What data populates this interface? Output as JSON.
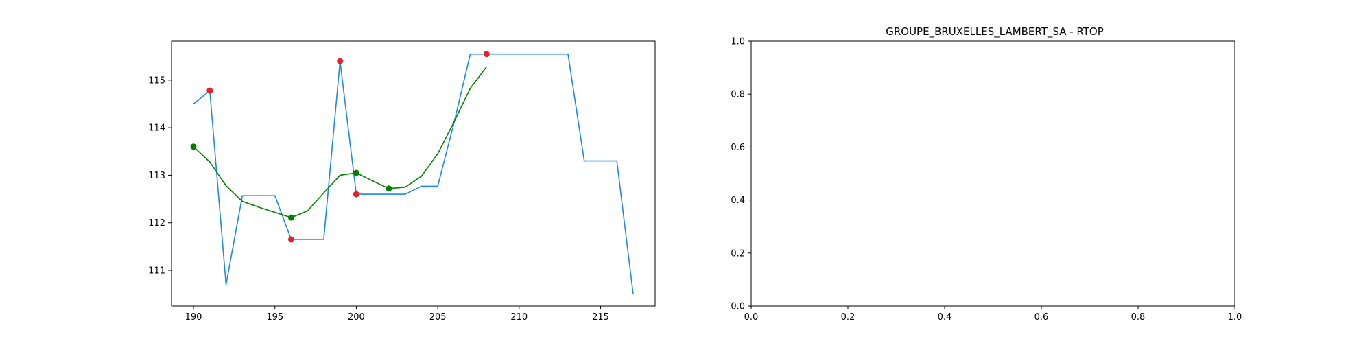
{
  "chart_data": [
    {
      "type": "line",
      "title": "",
      "xlabel": "",
      "ylabel": "",
      "xlim": [
        188.65,
        218.35
      ],
      "ylim": [
        110.25,
        115.82
      ],
      "xticks": [
        190,
        195,
        200,
        205,
        210,
        215
      ],
      "yticks": [
        111,
        112,
        113,
        114,
        115
      ],
      "xtick_labels": [
        "190",
        "195",
        "200",
        "205",
        "210",
        "215"
      ],
      "ytick_labels": [
        "111",
        "112",
        "113",
        "114",
        "115"
      ],
      "grid": false,
      "series": [
        {
          "style": "line",
          "color": "#1e88e5",
          "x": [
            190,
            191,
            192,
            193,
            194,
            195,
            196,
            197,
            198,
            199,
            200,
            201,
            202,
            203,
            204,
            205,
            206,
            207,
            208,
            209,
            210,
            211,
            212,
            213,
            214,
            215,
            216,
            217
          ],
          "y": [
            114.5,
            114.78,
            110.7,
            112.57,
            112.57,
            112.57,
            111.65,
            111.65,
            111.65,
            115.4,
            112.6,
            112.6,
            112.6,
            112.6,
            112.77,
            112.77,
            114.1,
            115.55,
            115.55,
            115.55,
            115.55,
            115.55,
            115.55,
            115.55,
            113.3,
            113.3,
            113.3,
            110.5
          ]
        },
        {
          "style": "line",
          "color": "#008000",
          "x": [
            190,
            191,
            192,
            193,
            194,
            195,
            196,
            197,
            198,
            199,
            200,
            201,
            202,
            203,
            204,
            205,
            206,
            207,
            208
          ],
          "y": [
            113.6,
            113.28,
            112.78,
            112.45,
            112.33,
            112.22,
            112.11,
            112.25,
            112.63,
            113.0,
            113.05,
            112.88,
            112.72,
            112.75,
            112.98,
            113.45,
            114.12,
            114.83,
            115.28
          ]
        },
        {
          "style": "scatter",
          "color": "#e8202a",
          "x": [
            191,
            196,
            199,
            200,
            208
          ],
          "y": [
            114.78,
            111.65,
            115.4,
            112.6,
            115.55
          ]
        },
        {
          "style": "scatter",
          "color": "#008000",
          "x": [
            190,
            196,
            200,
            202
          ],
          "y": [
            113.6,
            112.11,
            113.05,
            112.72
          ]
        }
      ]
    },
    {
      "type": "line",
      "title": "GROUPE_BRUXELLES_LAMBERT_SA - RTOP",
      "xlabel": "",
      "ylabel": "",
      "xlim": [
        0,
        1
      ],
      "ylim": [
        0,
        1
      ],
      "xticks": [
        0,
        0.2,
        0.4,
        0.6,
        0.8,
        1.0
      ],
      "yticks": [
        0,
        0.2,
        0.4,
        0.6,
        0.8,
        1.0
      ],
      "xtick_labels": [
        "0.0",
        "0.2",
        "0.4",
        "0.6",
        "0.8",
        "1.0"
      ],
      "ytick_labels": [
        "0.0",
        "0.2",
        "0.4",
        "0.6",
        "0.8",
        "1.0"
      ],
      "grid": false,
      "series": []
    }
  ]
}
